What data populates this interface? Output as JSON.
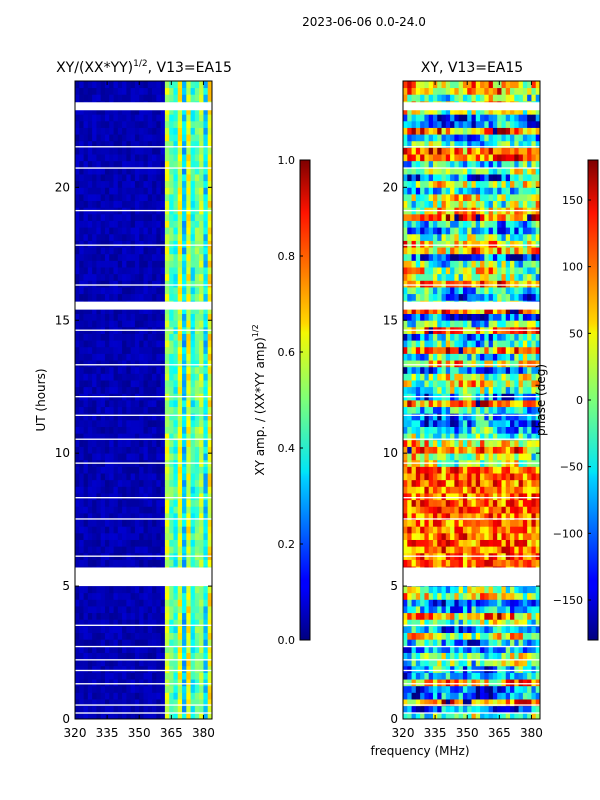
{
  "suptitle": "2023-06-06 0.0-24.0",
  "xlabel": "frequency (MHz)",
  "chart_data": [
    {
      "type": "heatmap",
      "title": "XY/(XX*YY)",
      "title_sup": "1/2",
      "title_suffix": ", V13=EA15",
      "ylabel": "UT (hours)",
      "xlim": [
        320,
        384
      ],
      "ylim": [
        0,
        24
      ],
      "xticks": [
        "320",
        "335",
        "350",
        "365",
        "380"
      ],
      "xtick_values": [
        320,
        335,
        350,
        365,
        380
      ],
      "yticks": [
        "0",
        "5",
        "10",
        "15",
        "20"
      ],
      "ytick_values": [
        0,
        5,
        10,
        15,
        20
      ],
      "colorbar": {
        "label": "XY amp. / (XX*YY amp)",
        "label_sup": "1/2",
        "range": [
          0.0,
          1.0
        ],
        "ticks": [
          "0.0",
          "0.2",
          "0.4",
          "0.6",
          "0.8",
          "1.0"
        ],
        "tick_values": [
          0.0,
          0.2,
          0.4,
          0.6,
          0.8,
          1.0
        ]
      },
      "flagged_hours": [
        [
          22.9,
          23.2
        ],
        [
          15.4,
          15.7
        ],
        [
          5.0,
          5.7
        ],
        [
          0.2,
          0.25
        ],
        [
          0.5,
          0.55
        ],
        [
          1.3,
          1.35
        ],
        [
          1.8,
          1.85
        ],
        [
          2.2,
          2.25
        ],
        [
          2.7,
          2.75
        ],
        [
          3.5,
          3.55
        ],
        [
          6.1,
          6.15
        ],
        [
          7.5,
          7.55
        ],
        [
          8.3,
          8.35
        ],
        [
          9.6,
          9.65
        ],
        [
          10.5,
          10.55
        ],
        [
          11.4,
          11.45
        ],
        [
          12.1,
          12.15
        ],
        [
          13.3,
          13.35
        ],
        [
          14.6,
          14.65
        ],
        [
          16.3,
          16.35
        ],
        [
          17.8,
          17.85
        ],
        [
          19.1,
          19.15
        ],
        [
          20.7,
          20.75
        ],
        [
          21.5,
          21.55
        ]
      ]
    },
    {
      "type": "heatmap",
      "title": "XY, V13=EA15",
      "xlim": [
        320,
        384
      ],
      "ylim": [
        0,
        24
      ],
      "xticks": [
        "320",
        "335",
        "350",
        "365",
        "380"
      ],
      "xtick_values": [
        320,
        335,
        350,
        365,
        380
      ],
      "yticks": [
        "0",
        "5",
        "10",
        "15",
        "20"
      ],
      "ytick_values": [
        0,
        5,
        10,
        15,
        20
      ],
      "colorbar": {
        "label": "phase (deg)",
        "range": [
          -180,
          180
        ],
        "ticks": [
          "−150",
          "−100",
          "−50",
          "0",
          "50",
          "100",
          "150"
        ],
        "tick_values": [
          -150,
          -100,
          -50,
          0,
          50,
          100,
          150
        ]
      },
      "flagged_hours": [
        [
          22.9,
          23.2
        ],
        [
          15.4,
          15.7
        ],
        [
          5.0,
          5.7
        ],
        [
          0.2,
          0.25
        ],
        [
          0.5,
          0.55
        ],
        [
          1.3,
          1.35
        ],
        [
          1.8,
          1.85
        ],
        [
          2.2,
          2.25
        ],
        [
          2.7,
          2.75
        ],
        [
          3.5,
          3.55
        ],
        [
          6.1,
          6.15
        ],
        [
          7.5,
          7.55
        ],
        [
          8.3,
          8.35
        ],
        [
          9.6,
          9.65
        ],
        [
          10.5,
          10.55
        ],
        [
          11.4,
          11.45
        ],
        [
          12.1,
          12.15
        ],
        [
          13.3,
          13.35
        ],
        [
          14.6,
          14.65
        ],
        [
          16.3,
          16.35
        ],
        [
          17.8,
          17.85
        ],
        [
          19.1,
          19.15
        ],
        [
          20.7,
          20.75
        ],
        [
          21.5,
          21.55
        ]
      ]
    }
  ]
}
